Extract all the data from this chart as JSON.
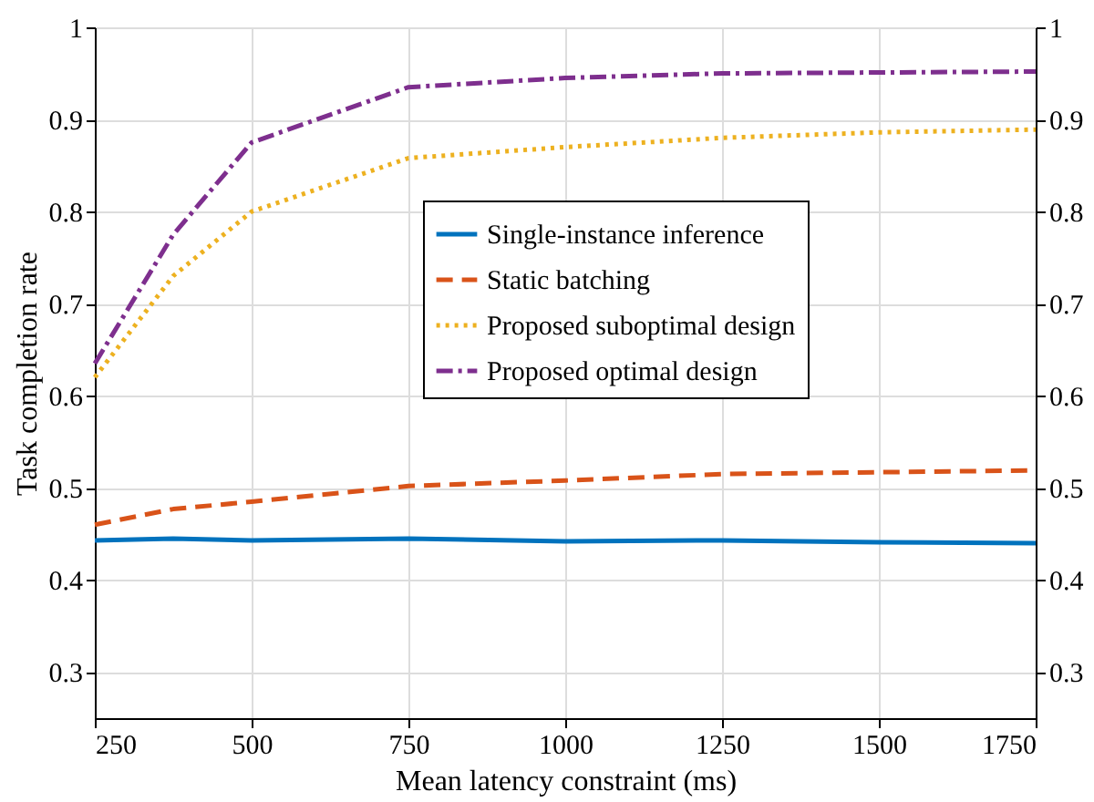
{
  "chart_data": {
    "type": "line",
    "xlabel": "Mean latency constraint (ms)",
    "ylabel": "Task completion rate",
    "x": [
      250,
      375,
      500,
      750,
      1000,
      1250,
      1500,
      1750
    ],
    "series": [
      {
        "name": "Single-instance inference",
        "color": "#0072bd",
        "line_style": "solid",
        "values": [
          0.443,
          0.445,
          0.443,
          0.445,
          0.442,
          0.443,
          0.441,
          0.44
        ]
      },
      {
        "name": "Static batching",
        "color": "#d95319",
        "line_style": "dashed",
        "values": [
          0.46,
          0.477,
          0.485,
          0.502,
          0.508,
          0.515,
          0.517,
          0.519
        ]
      },
      {
        "name": "Proposed suboptimal design",
        "color": "#edb120",
        "line_style": "dotted",
        "values": [
          0.62,
          0.73,
          0.8,
          0.858,
          0.87,
          0.88,
          0.886,
          0.889
        ]
      },
      {
        "name": "Proposed optimal design",
        "color": "#7e2f8e",
        "line_style": "dashdot",
        "values": [
          0.635,
          0.775,
          0.875,
          0.935,
          0.945,
          0.95,
          0.951,
          0.952
        ]
      }
    ],
    "xlim": [
      250,
      1750
    ],
    "xticks": [
      250,
      500,
      750,
      1000,
      1250,
      1500,
      1750
    ],
    "ylim": [
      0.25,
      1
    ],
    "yticks": [
      0.3,
      0.4,
      0.5,
      0.6,
      0.7,
      0.8,
      0.9,
      1
    ],
    "y2lim": [
      0.25,
      1
    ],
    "y2ticks": [
      0.3,
      0.4,
      0.5,
      0.6,
      0.7,
      0.8,
      0.9,
      1
    ],
    "grid": true,
    "legend": "right",
    "marker": "none"
  }
}
